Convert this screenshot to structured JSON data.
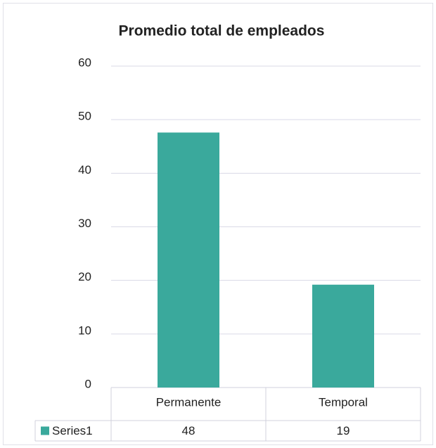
{
  "chart_data": {
    "type": "bar",
    "title": "Promedio total de empleados",
    "categories": [
      "Permanente",
      "Temporal"
    ],
    "series": [
      {
        "name": "Series1",
        "color": "#3aa99c",
        "values": [
          47.6,
          19.2
        ],
        "value_labels": [
          "48",
          "19"
        ]
      }
    ],
    "ylim": [
      0,
      60
    ],
    "yticks": [
      0,
      10,
      20,
      30,
      40,
      50,
      60
    ],
    "grid": true,
    "data_table": true
  }
}
